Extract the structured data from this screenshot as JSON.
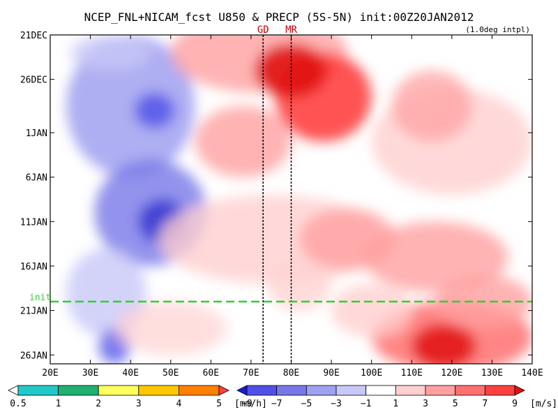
{
  "chart_data": {
    "type": "heatmap",
    "title": "NCEP_FNL+NICAM_fcst U850 & PRECP (5S-5N) init:00Z20JAN2012",
    "subtitle": "(1.0deg intpl)",
    "x_ticks": [
      "20E",
      "30E",
      "40E",
      "50E",
      "60E",
      "70E",
      "80E",
      "90E",
      "100E",
      "110E",
      "120E",
      "130E",
      "140E"
    ],
    "x_range": [
      20,
      140
    ],
    "y_ticks": [
      "21DEC",
      "26DEC",
      "1JAN",
      "6JAN",
      "11JAN",
      "16JAN",
      "21JAN",
      "26JAN"
    ],
    "y_tick_days": [
      0,
      5,
      11,
      16,
      21,
      26,
      31,
      36
    ],
    "y_range_days": [
      0,
      37
    ],
    "init_label": "init",
    "init_day": 30,
    "site_markers": [
      {
        "label": "GD",
        "lon": 73
      },
      {
        "label": "MR",
        "lon": 80
      }
    ],
    "precip_legend": {
      "labels": [
        "0.5",
        "1",
        "2",
        "3",
        "4",
        "5"
      ],
      "unit": "[mm/h]",
      "colors": [
        "#ffffff",
        "#20c8c8",
        "#20b070",
        "#ffff60",
        "#ffc800",
        "#ff8000",
        "#ff4040"
      ]
    },
    "wind_legend": {
      "labels": [
        "−9",
        "−7",
        "−5",
        "−3",
        "−1",
        "1",
        "3",
        "5",
        "7",
        "9"
      ],
      "unit": "[m/s]",
      "colors": [
        "#1818d8",
        "#5050e8",
        "#7878e8",
        "#a0a0f0",
        "#c8c8f8",
        "#ffffff",
        "#ffd0d0",
        "#ffa0a0",
        "#ff7070",
        "#ff4040",
        "#e01010"
      ]
    }
  }
}
